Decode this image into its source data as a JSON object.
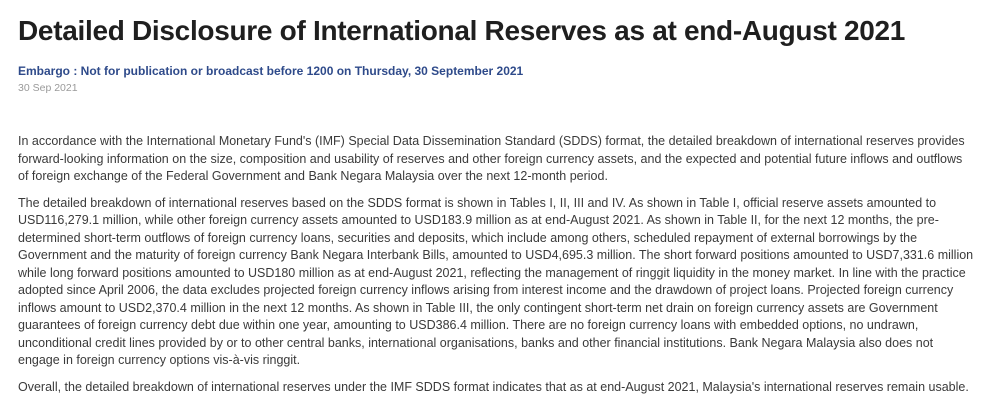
{
  "header": {
    "title": "Detailed Disclosure of International Reserves as at end-August 2021",
    "embargo": "Embargo : Not for publication or broadcast before 1200 on Thursday, 30 September 2021",
    "date": "30 Sep 2021"
  },
  "content": {
    "paragraphs": [
      "In accordance with the International Monetary Fund's (IMF) Special Data Dissemination Standard (SDDS) format, the detailed breakdown of international reserves provides forward-looking information on the size, composition and usability of reserves and other foreign currency assets, and the expected and potential future inflows and outflows of foreign exchange of the Federal Government and Bank Negara Malaysia over the next 12-month period.",
      "The detailed breakdown of international reserves based on the SDDS format is shown in Tables I, II, III and IV. As shown in Table I, official reserve assets amounted to USD116,279.1 million, while other foreign currency assets amounted to USD183.9 million as at end-August 2021. As shown in Table II, for the next 12 months, the pre-determined short-term outflows of foreign currency loans, securities and deposits, which include among others, scheduled repayment of external borrowings by the Government and the maturity of foreign currency Bank Negara Interbank Bills, amounted to USD4,695.3 million. The short forward positions amounted to USD7,331.6 million while long forward positions amounted to USD180 million as at end-August 2021, reflecting the management of ringgit liquidity in the money market. In line with the practice adopted since April 2006, the data excludes projected foreign currency inflows arising from interest income and the drawdown of project loans. Projected foreign currency inflows amount to USD2,370.4 million in the next 12 months. As shown in Table III, the only contingent short-term net drain on foreign currency assets are Government guarantees of foreign currency debt due within one year, amounting to USD386.4 million. There are no foreign currency loans with embedded options, no undrawn, unconditional credit lines provided by or to other central banks, international organisations, banks and other financial institutions. Bank Negara Malaysia also does not engage in foreign currency options vis-à-vis ringgit.",
      "Overall, the detailed breakdown of international reserves under the IMF SDDS format indicates that as at end-August 2021, Malaysia's international reserves remain usable."
    ]
  }
}
